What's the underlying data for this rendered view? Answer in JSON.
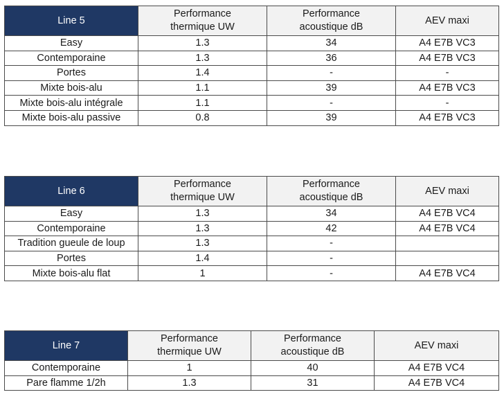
{
  "tables": [
    {
      "title": "Line 5",
      "headers": {
        "thermal": [
          "Performance",
          "thermique UW"
        ],
        "acoustic": [
          "Performance",
          "acoustique dB"
        ],
        "aev": "AEV maxi"
      },
      "rows": [
        {
          "name": "Easy",
          "thermal": "1.3",
          "acoustic": "34",
          "aev": "A4 E7B VC3"
        },
        {
          "name": "Contemporaine",
          "thermal": "1.3",
          "acoustic": "36",
          "aev": "A4 E7B VC3"
        },
        {
          "name": "Portes",
          "thermal": "1.4",
          "acoustic": "-",
          "aev": "-"
        },
        {
          "name": "Mixte bois-alu",
          "thermal": "1.1",
          "acoustic": "39",
          "aev": "A4 E7B VC3"
        },
        {
          "name": "Mixte bois-alu intégrale",
          "thermal": "1.1",
          "acoustic": "-",
          "aev": "-"
        },
        {
          "name": "Mixte bois-alu passive",
          "thermal": "0.8",
          "acoustic": "39",
          "aev": "A4 E7B VC3"
        }
      ]
    },
    {
      "title": "Line 6",
      "headers": {
        "thermal": [
          "Performance",
          "thermique UW"
        ],
        "acoustic": [
          "Performance",
          "acoustique dB"
        ],
        "aev": "AEV maxi"
      },
      "rows": [
        {
          "name": "Easy",
          "thermal": "1.3",
          "acoustic": "34",
          "aev": "A4 E7B VC4"
        },
        {
          "name": "Contemporaine",
          "thermal": "1.3",
          "acoustic": "42",
          "aev": "A4 E7B VC4"
        },
        {
          "name": "Tradition gueule de loup",
          "thermal": "1.3",
          "acoustic": "-",
          "aev": ""
        },
        {
          "name": "Portes",
          "thermal": "1.4",
          "acoustic": "-",
          "aev": ""
        },
        {
          "name": "Mixte bois-alu flat",
          "thermal": "1",
          "acoustic": "-",
          "aev": "A4 E7B VC4"
        }
      ]
    },
    {
      "title": "Line 7",
      "headers": {
        "thermal": [
          "Performance",
          "thermique UW"
        ],
        "acoustic": [
          "Performance",
          "acoustique dB"
        ],
        "aev": "AEV maxi"
      },
      "rows": [
        {
          "name": "Contemporaine",
          "thermal": "1",
          "acoustic": "40",
          "aev": "A4 E7B VC4"
        },
        {
          "name": "Pare flamme 1/2h",
          "thermal": "1.3",
          "acoustic": "31",
          "aev": "A4 E7B VC4"
        }
      ]
    }
  ],
  "colors": {
    "header_fill": "#1f3864",
    "header_text": "#ffffff",
    "border": "#4a4a4a"
  }
}
